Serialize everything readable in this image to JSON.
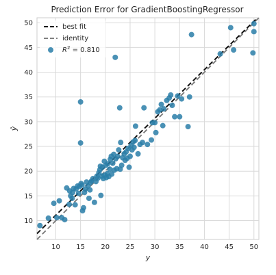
{
  "chart_data": {
    "type": "scatter",
    "title": "Prediction Error for GradientBoostingRegressor",
    "xlabel": "y",
    "ylabel": "ŷ",
    "xlim": [
      6.2,
      51.0
    ],
    "ylim": [
      6.2,
      51.0
    ],
    "xticks": [
      10,
      15,
      20,
      25,
      30,
      35,
      40,
      45,
      50
    ],
    "yticks": [
      10,
      15,
      20,
      25,
      30,
      35,
      40,
      45,
      50
    ],
    "grid": true,
    "legend": {
      "placement": "top-left",
      "entries": [
        {
          "label": "best fit",
          "style": "dashed",
          "color": "#111111"
        },
        {
          "label": "identity",
          "style": "dashed",
          "color": "#808080"
        },
        {
          "label": "R^2 = 0.810",
          "style": "marker",
          "color": "#2a7ea8"
        }
      ]
    },
    "best_fit_line": {
      "slope": 0.98,
      "intercept": 1.3
    },
    "identity_line": {
      "slope": 1,
      "intercept": 0
    },
    "point_color": "#2a7ea8",
    "points": [
      [
        6.8,
        9.0
      ],
      [
        8.5,
        10.5
      ],
      [
        9.6,
        13.5
      ],
      [
        10.2,
        10.6
      ],
      [
        10.7,
        14.0
      ],
      [
        11.2,
        10.6
      ],
      [
        11.8,
        10.2
      ],
      [
        12.2,
        16.6
      ],
      [
        12.7,
        13.3
      ],
      [
        12.8,
        16.0
      ],
      [
        13.0,
        15.0
      ],
      [
        13.3,
        14.5
      ],
      [
        13.4,
        15.7
      ],
      [
        13.6,
        16.5
      ],
      [
        13.9,
        13.2
      ],
      [
        14.1,
        16.4
      ],
      [
        14.4,
        17.0
      ],
      [
        14.6,
        15.5
      ],
      [
        14.8,
        16.9
      ],
      [
        15.0,
        34.0
      ],
      [
        15.0,
        25.7
      ],
      [
        15.1,
        17.5
      ],
      [
        15.3,
        17.2
      ],
      [
        15.4,
        12.0
      ],
      [
        15.6,
        12.6
      ],
      [
        15.8,
        15.7
      ],
      [
        16.0,
        16.4
      ],
      [
        16.2,
        17.8
      ],
      [
        16.5,
        17.0
      ],
      [
        16.7,
        14.5
      ],
      [
        16.9,
        16.2
      ],
      [
        17.0,
        17.7
      ],
      [
        17.2,
        18.0
      ],
      [
        17.5,
        18.5
      ],
      [
        17.8,
        13.7
      ],
      [
        18.1,
        17.9
      ],
      [
        18.3,
        19.0
      ],
      [
        18.5,
        18.6
      ],
      [
        18.7,
        19.7
      ],
      [
        18.9,
        20.3
      ],
      [
        19.0,
        21.0
      ],
      [
        19.1,
        15.1
      ],
      [
        19.3,
        19.0
      ],
      [
        19.4,
        20.8
      ],
      [
        19.6,
        18.5
      ],
      [
        19.8,
        22.0
      ],
      [
        19.9,
        19.2
      ],
      [
        20.1,
        21.2
      ],
      [
        20.2,
        18.7
      ],
      [
        20.4,
        19.5
      ],
      [
        20.5,
        21.5
      ],
      [
        20.7,
        18.9
      ],
      [
        20.9,
        20.4
      ],
      [
        21.0,
        22.4
      ],
      [
        21.2,
        23.0
      ],
      [
        21.3,
        19.4
      ],
      [
        21.5,
        21.6
      ],
      [
        21.7,
        23.4
      ],
      [
        21.8,
        20.2
      ],
      [
        22.0,
        43.0
      ],
      [
        22.1,
        22.5
      ],
      [
        22.3,
        20.5
      ],
      [
        22.5,
        23.0
      ],
      [
        22.7,
        24.3
      ],
      [
        22.9,
        32.8
      ],
      [
        23.0,
        20.4
      ],
      [
        23.1,
        25.8
      ],
      [
        23.3,
        21.2
      ],
      [
        23.5,
        22.7
      ],
      [
        23.8,
        23.5
      ],
      [
        24.0,
        22.2
      ],
      [
        24.2,
        23.9
      ],
      [
        24.4,
        22.6
      ],
      [
        24.6,
        24.6
      ],
      [
        24.8,
        20.8
      ],
      [
        25.0,
        23.0
      ],
      [
        25.2,
        25.2
      ],
      [
        25.4,
        24.3
      ],
      [
        25.6,
        25.9
      ],
      [
        25.8,
        24.8
      ],
      [
        26.0,
        26.2
      ],
      [
        26.1,
        29.1
      ],
      [
        26.6,
        23.5
      ],
      [
        27.0,
        25.4
      ],
      [
        27.5,
        25.8
      ],
      [
        27.8,
        32.8
      ],
      [
        28.5,
        25.4
      ],
      [
        29.3,
        26.3
      ],
      [
        29.5,
        29.8
      ],
      [
        30.0,
        29.8
      ],
      [
        30.2,
        27.8
      ],
      [
        30.6,
        32.0
      ],
      [
        31.0,
        32.4
      ],
      [
        31.3,
        33.5
      ],
      [
        31.6,
        29.2
      ],
      [
        31.8,
        32.6
      ],
      [
        32.4,
        34.3
      ],
      [
        32.9,
        34.8
      ],
      [
        33.2,
        35.4
      ],
      [
        33.5,
        33.3
      ],
      [
        34.0,
        31.0
      ],
      [
        34.6,
        35.2
      ],
      [
        35.0,
        31.0
      ],
      [
        35.4,
        34.6
      ],
      [
        36.7,
        29.0
      ],
      [
        37.0,
        35.0
      ],
      [
        37.4,
        47.6
      ],
      [
        43.2,
        43.7
      ],
      [
        45.3,
        49.0
      ],
      [
        45.9,
        44.5
      ],
      [
        49.8,
        43.9
      ],
      [
        50.0,
        49.8
      ],
      [
        50.0,
        48.2
      ]
    ]
  }
}
